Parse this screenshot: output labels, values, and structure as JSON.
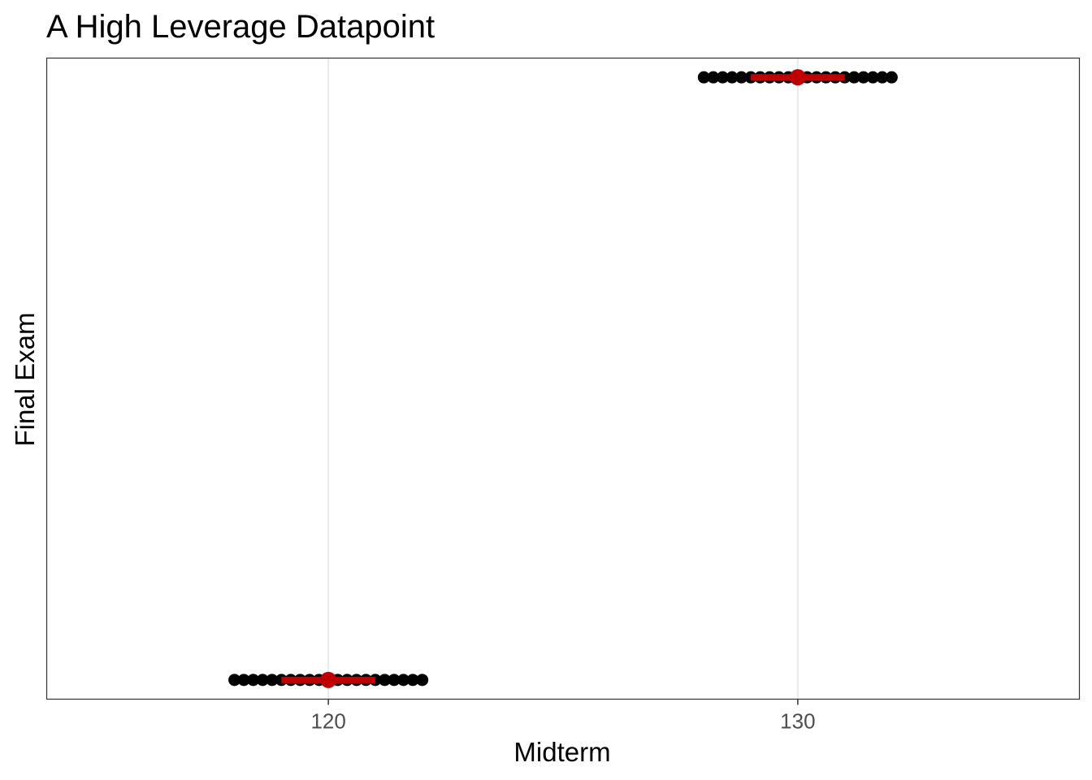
{
  "chart_data": {
    "type": "scatter",
    "title": "A High Leverage Datapoint",
    "xlabel": "Midterm",
    "ylabel": "Final Exam",
    "xlim": [
      114,
      136
    ],
    "ylim": [
      0,
      1
    ],
    "x_ticks": [
      120,
      130
    ],
    "x_tick_labels": [
      "120",
      "130"
    ],
    "y_ticks": [],
    "grid": {
      "major_x": true,
      "major_y": false
    },
    "legend": "none",
    "series": [
      {
        "style": "black-points",
        "color": "#000000",
        "points": [
          {
            "x": 118.0,
            "y": 0.03
          },
          {
            "x": 118.2,
            "y": 0.03
          },
          {
            "x": 118.4,
            "y": 0.03
          },
          {
            "x": 118.6,
            "y": 0.03
          },
          {
            "x": 118.8,
            "y": 0.03
          },
          {
            "x": 119.0,
            "y": 0.03
          },
          {
            "x": 119.2,
            "y": 0.03
          },
          {
            "x": 119.4,
            "y": 0.03
          },
          {
            "x": 119.6,
            "y": 0.03
          },
          {
            "x": 119.8,
            "y": 0.03
          },
          {
            "x": 120.0,
            "y": 0.03
          },
          {
            "x": 120.2,
            "y": 0.03
          },
          {
            "x": 120.4,
            "y": 0.03
          },
          {
            "x": 120.6,
            "y": 0.03
          },
          {
            "x": 120.8,
            "y": 0.03
          },
          {
            "x": 121.0,
            "y": 0.03
          },
          {
            "x": 121.2,
            "y": 0.03
          },
          {
            "x": 121.4,
            "y": 0.03
          },
          {
            "x": 121.6,
            "y": 0.03
          },
          {
            "x": 121.8,
            "y": 0.03
          },
          {
            "x": 122.0,
            "y": 0.03
          },
          {
            "x": 128.0,
            "y": 0.97
          },
          {
            "x": 128.2,
            "y": 0.97
          },
          {
            "x": 128.4,
            "y": 0.97
          },
          {
            "x": 128.6,
            "y": 0.97
          },
          {
            "x": 128.8,
            "y": 0.97
          },
          {
            "x": 129.0,
            "y": 0.97
          },
          {
            "x": 129.2,
            "y": 0.97
          },
          {
            "x": 129.4,
            "y": 0.97
          },
          {
            "x": 129.6,
            "y": 0.97
          },
          {
            "x": 129.8,
            "y": 0.97
          },
          {
            "x": 130.0,
            "y": 0.97
          },
          {
            "x": 130.2,
            "y": 0.97
          },
          {
            "x": 130.4,
            "y": 0.97
          },
          {
            "x": 130.6,
            "y": 0.97
          },
          {
            "x": 130.8,
            "y": 0.97
          },
          {
            "x": 131.0,
            "y": 0.97
          },
          {
            "x": 131.2,
            "y": 0.97
          },
          {
            "x": 131.4,
            "y": 0.97
          },
          {
            "x": 131.6,
            "y": 0.97
          },
          {
            "x": 131.8,
            "y": 0.97
          },
          {
            "x": 132.0,
            "y": 0.97
          }
        ]
      },
      {
        "style": "red-segments",
        "color": "#c00000",
        "segments": [
          {
            "x_start": 119.0,
            "x_end": 121.0,
            "y": 0.03
          },
          {
            "x_start": 129.0,
            "x_end": 131.0,
            "y": 0.97
          }
        ]
      },
      {
        "style": "red-points",
        "color": "#c00000",
        "points": [
          {
            "x": 120,
            "y": 0.03
          },
          {
            "x": 130,
            "y": 0.97
          }
        ]
      }
    ],
    "colors": {
      "panel_border": "#333333",
      "grid": "#ebebeb",
      "tick_text": "#4d4d4d",
      "tick_mark": "#333333"
    }
  }
}
